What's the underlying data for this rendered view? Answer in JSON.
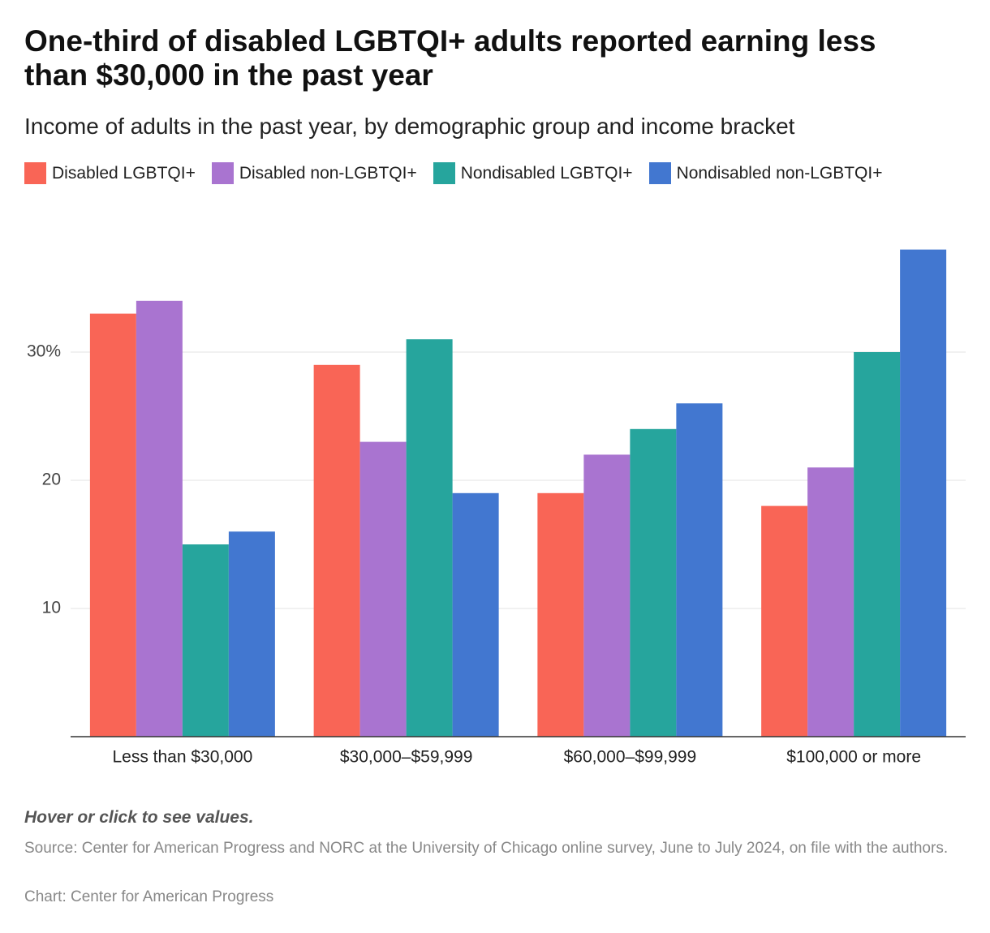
{
  "chart_data": {
    "type": "bar",
    "title": "One-third of disabled LGBTQI+ adults reported earning less than $30,000 in the past year",
    "subtitle": "Income of adults in the past year, by demographic group and income bracket",
    "categories": [
      "Less than $30,000",
      "$30,000–$59,999",
      "$60,000–$99,999",
      "$100,000 or more"
    ],
    "series": [
      {
        "name": "Disabled LGBTQI+",
        "color": "#f96556",
        "values": [
          33,
          29,
          19,
          18
        ]
      },
      {
        "name": "Disabled non-LGBTQI+",
        "color": "#a974d0",
        "values": [
          34,
          23,
          22,
          21
        ]
      },
      {
        "name": "Nondisabled LGBTQI+",
        "color": "#26a59d",
        "values": [
          15,
          31,
          24,
          30
        ]
      },
      {
        "name": "Nondisabled non-LGBTQI+",
        "color": "#4277d0",
        "values": [
          16,
          19,
          26,
          38
        ]
      }
    ],
    "ylim": [
      0,
      40
    ],
    "yticks": [
      10,
      20,
      {
        "value": 30,
        "label": "30%"
      }
    ],
    "grid": true,
    "note": "Hover or click to see values.",
    "source": "Source: Center for American Progress and NORC at the University of Chicago online survey, June to July 2024, on file with the authors.",
    "credit": "Chart: Center for American Progress"
  }
}
